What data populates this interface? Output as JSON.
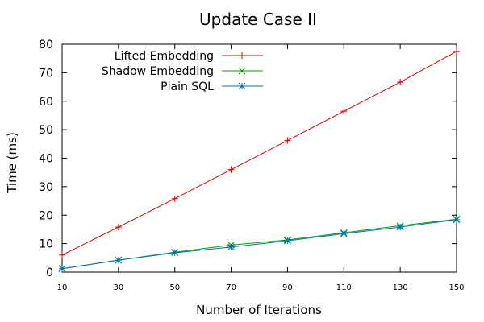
{
  "chart_data": {
    "type": "line",
    "title": "Update Case II",
    "xlabel": "Number of Iterations",
    "ylabel": "Time (ms)",
    "xlim": [
      10,
      150
    ],
    "ylim": [
      0,
      80
    ],
    "xticks": [
      10,
      30,
      50,
      70,
      90,
      110,
      130,
      150
    ],
    "yticks": [
      0,
      10,
      20,
      30,
      40,
      50,
      60,
      70,
      80
    ],
    "grid": false,
    "legend_position": "top-left",
    "x": [
      10,
      30,
      50,
      70,
      90,
      110,
      130,
      150
    ],
    "series": [
      {
        "name": "Lifted Embedding",
        "color": "#e00000",
        "marker": "plus",
        "values": [
          6,
          15.8,
          25.8,
          36,
          46.2,
          56.5,
          66.7,
          77.5
        ]
      },
      {
        "name": "Shadow Embedding",
        "color": "#00a000",
        "marker": "cross",
        "values": [
          1.2,
          4.2,
          7,
          9.5,
          11.3,
          13.8,
          16.3,
          18.6
        ]
      },
      {
        "name": "Plain SQL",
        "color": "#0070b0",
        "marker": "star",
        "values": [
          1.2,
          4.2,
          6.8,
          8.8,
          11,
          13.5,
          15.8,
          18.4
        ]
      }
    ]
  }
}
